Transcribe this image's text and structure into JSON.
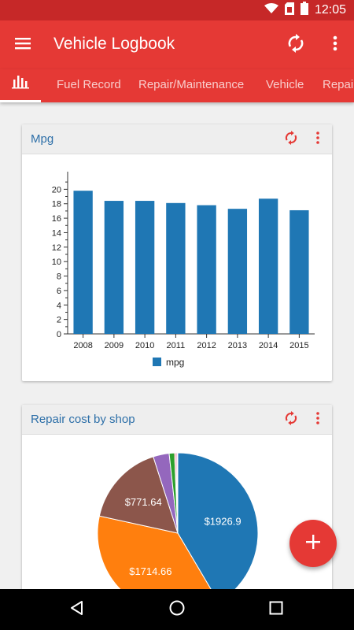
{
  "status_bar": {
    "time": "12:05"
  },
  "app_bar": {
    "title": "Vehicle Logbook"
  },
  "tabs": [
    {
      "label": "Fuel Record"
    },
    {
      "label": "Repair/Maintenance"
    },
    {
      "label": "Vehicle"
    },
    {
      "label": "Repair"
    }
  ],
  "colors": {
    "primary": "#e53935",
    "status": "#c62828",
    "title_blue": "#2d6fa8",
    "bar_blue": "#1f77b4"
  },
  "cards": [
    {
      "title": "Mpg"
    },
    {
      "title": "Repair cost by shop"
    }
  ],
  "chart_data": [
    {
      "type": "bar",
      "categories": [
        "2008",
        "2009",
        "2010",
        "2011",
        "2012",
        "2013",
        "2014",
        "2015"
      ],
      "series": [
        {
          "name": "mpg",
          "values": [
            19.8,
            18.4,
            18.4,
            18.1,
            17.8,
            17.3,
            18.7,
            17.1
          ]
        }
      ],
      "ylim": [
        0,
        22
      ],
      "yticks": [
        0,
        2,
        4,
        6,
        8,
        10,
        12,
        14,
        16,
        18,
        20
      ],
      "legend": "bottom"
    },
    {
      "type": "pie",
      "slices": [
        {
          "label": "$1926.9",
          "value": 1926.9,
          "color": "#1f77b4"
        },
        {
          "label": "$1714.66",
          "value": 1714.66,
          "color": "#ff7f0e"
        },
        {
          "label": "$771.64",
          "value": 771.64,
          "color": "#8c564b"
        },
        {
          "label": "",
          "value": 150,
          "color": "#9467bd"
        },
        {
          "label": "",
          "value": 50,
          "color": "#2ca02c"
        },
        {
          "label": "",
          "value": 12,
          "color": "#d62728"
        },
        {
          "label": "",
          "value": 12,
          "color": "#e377c2"
        },
        {
          "label": "",
          "value": 6,
          "color": "#7f7f7f"
        }
      ]
    }
  ]
}
